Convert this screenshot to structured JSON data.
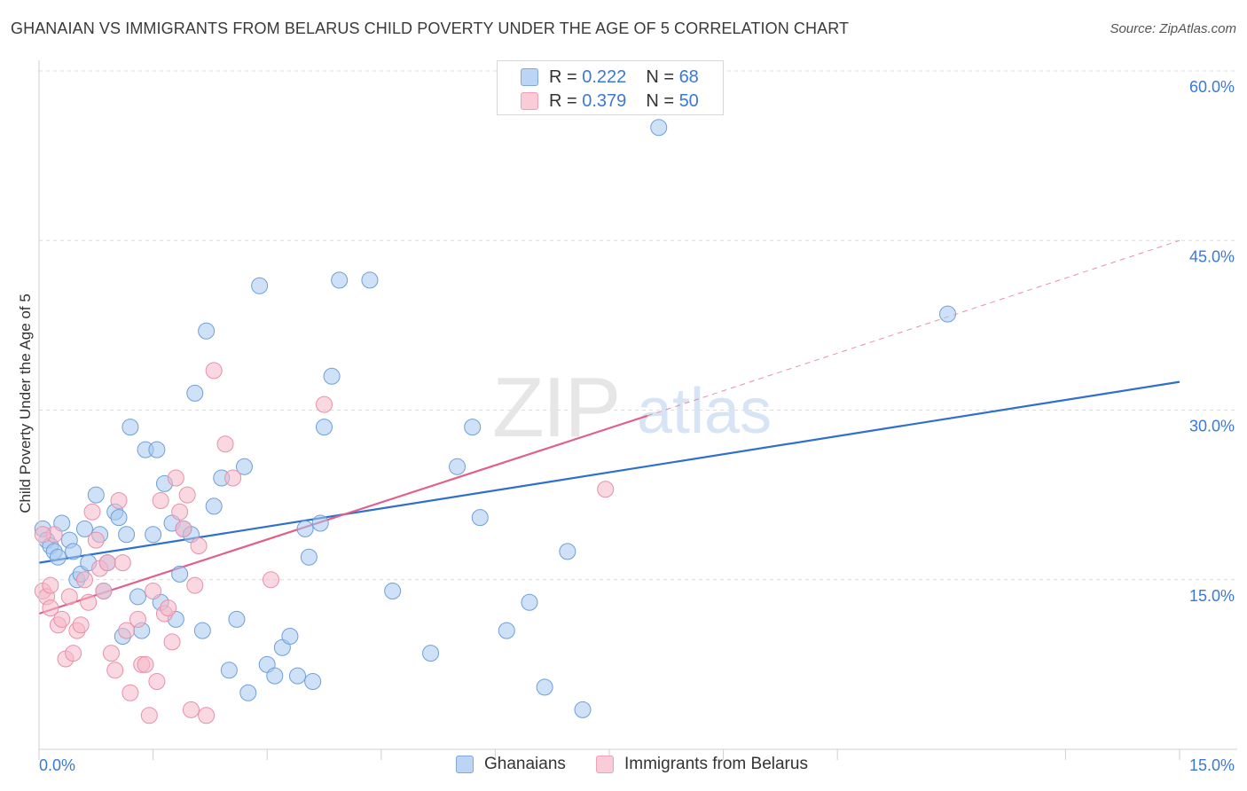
{
  "chart_data": {
    "type": "scatter",
    "title": "GHANAIAN VS IMMIGRANTS FROM BELARUS CHILD POVERTY UNDER THE AGE OF 5 CORRELATION CHART",
    "source": "Source: ZipAtlas.com",
    "ylabel": "Child Poverty Under the Age of 5",
    "xlabel": "",
    "xlim": [
      0,
      15
    ],
    "ylim": [
      0,
      60
    ],
    "x_tick_labels": [
      "0.0%",
      "15.0%"
    ],
    "y_ticks": [
      15,
      30,
      45,
      60
    ],
    "y_tick_labels": [
      "15.0%",
      "30.0%",
      "45.0%",
      "60.0%"
    ],
    "grid": true,
    "watermark": "ZIPatlas",
    "legend": {
      "position": "top-center",
      "entries": [
        {
          "r_label": "R =",
          "r_value": "0.222",
          "n_label": "N =",
          "n_value": "68"
        },
        {
          "r_label": "R =",
          "r_value": "0.379",
          "n_label": "N =",
          "n_value": "50"
        }
      ]
    },
    "series": [
      {
        "name": "Ghanaians",
        "color": "#a8c8f0",
        "stroke": "#6f9fd8",
        "trend_color": "#2f6fce",
        "trend": {
          "x0": 0,
          "y0": 16.5,
          "x1": 15,
          "y1": 32.5
        },
        "points": [
          [
            0.05,
            19.5
          ],
          [
            0.1,
            18.5
          ],
          [
            0.15,
            18.0
          ],
          [
            0.2,
            17.5
          ],
          [
            0.25,
            17.0
          ],
          [
            0.3,
            20.0
          ],
          [
            0.4,
            18.5
          ],
          [
            0.45,
            17.5
          ],
          [
            0.5,
            15.0
          ],
          [
            0.55,
            15.5
          ],
          [
            0.6,
            19.5
          ],
          [
            0.65,
            16.5
          ],
          [
            0.75,
            22.5
          ],
          [
            0.8,
            19.0
          ],
          [
            0.85,
            14.0
          ],
          [
            0.9,
            16.5
          ],
          [
            1.0,
            21.0
          ],
          [
            1.05,
            20.5
          ],
          [
            1.1,
            10.0
          ],
          [
            1.15,
            19.0
          ],
          [
            1.2,
            28.5
          ],
          [
            1.3,
            13.5
          ],
          [
            1.35,
            10.5
          ],
          [
            1.4,
            26.5
          ],
          [
            1.5,
            19.0
          ],
          [
            1.55,
            26.5
          ],
          [
            1.6,
            13.0
          ],
          [
            1.65,
            23.5
          ],
          [
            1.75,
            20.0
          ],
          [
            1.8,
            11.5
          ],
          [
            1.85,
            15.5
          ],
          [
            1.9,
            19.5
          ],
          [
            2.0,
            19.0
          ],
          [
            2.05,
            31.5
          ],
          [
            2.15,
            10.5
          ],
          [
            2.2,
            37.0
          ],
          [
            2.3,
            21.5
          ],
          [
            2.4,
            24.0
          ],
          [
            2.5,
            7.0
          ],
          [
            2.6,
            11.5
          ],
          [
            2.7,
            25.0
          ],
          [
            2.75,
            5.0
          ],
          [
            2.9,
            41.0
          ],
          [
            3.0,
            7.5
          ],
          [
            3.1,
            6.5
          ],
          [
            3.2,
            9.0
          ],
          [
            3.3,
            10.0
          ],
          [
            3.4,
            6.5
          ],
          [
            3.5,
            19.5
          ],
          [
            3.55,
            17.0
          ],
          [
            3.6,
            6.0
          ],
          [
            3.7,
            20.0
          ],
          [
            3.75,
            28.5
          ],
          [
            3.85,
            33.0
          ],
          [
            3.95,
            41.5
          ],
          [
            4.35,
            41.5
          ],
          [
            4.65,
            14.0
          ],
          [
            5.15,
            8.5
          ],
          [
            5.5,
            25.0
          ],
          [
            5.7,
            28.5
          ],
          [
            5.8,
            20.5
          ],
          [
            6.15,
            10.5
          ],
          [
            6.45,
            13.0
          ],
          [
            6.65,
            5.5
          ],
          [
            6.95,
            17.5
          ],
          [
            7.15,
            3.5
          ],
          [
            8.15,
            55.0
          ],
          [
            11.95,
            38.5
          ]
        ]
      },
      {
        "name": "Immigrants from Belarus",
        "color": "#f5b8c8",
        "stroke": "#e890aa",
        "trend_color": "#e0608a",
        "trend": {
          "x0": 0,
          "y0": 12.0,
          "x1": 8.0,
          "y1": 29.5
        },
        "trend_ext": {
          "x0": 8.0,
          "y0": 29.5,
          "x1": 15,
          "y1": 45.0
        },
        "points": [
          [
            0.05,
            14.0
          ],
          [
            0.1,
            13.5
          ],
          [
            0.15,
            12.5
          ],
          [
            0.2,
            19.0
          ],
          [
            0.25,
            11.0
          ],
          [
            0.3,
            11.5
          ],
          [
            0.35,
            8.0
          ],
          [
            0.4,
            13.5
          ],
          [
            0.45,
            8.5
          ],
          [
            0.5,
            10.5
          ],
          [
            0.55,
            11.0
          ],
          [
            0.6,
            15.0
          ],
          [
            0.65,
            13.0
          ],
          [
            0.7,
            21.0
          ],
          [
            0.75,
            18.5
          ],
          [
            0.8,
            16.0
          ],
          [
            0.85,
            14.0
          ],
          [
            0.9,
            16.5
          ],
          [
            0.95,
            8.5
          ],
          [
            1.0,
            7.0
          ],
          [
            1.05,
            22.0
          ],
          [
            1.1,
            16.5
          ],
          [
            1.15,
            10.5
          ],
          [
            1.2,
            5.0
          ],
          [
            1.3,
            11.5
          ],
          [
            1.35,
            7.5
          ],
          [
            1.4,
            7.5
          ],
          [
            1.45,
            3.0
          ],
          [
            1.5,
            14.0
          ],
          [
            1.55,
            6.0
          ],
          [
            1.6,
            22.0
          ],
          [
            1.65,
            12.0
          ],
          [
            1.7,
            12.5
          ],
          [
            1.75,
            9.5
          ],
          [
            1.8,
            24.0
          ],
          [
            1.85,
            21.0
          ],
          [
            1.9,
            19.5
          ],
          [
            1.95,
            22.5
          ],
          [
            2.0,
            3.5
          ],
          [
            2.05,
            14.5
          ],
          [
            2.1,
            18.0
          ],
          [
            2.2,
            3.0
          ],
          [
            2.3,
            33.5
          ],
          [
            2.45,
            27.0
          ],
          [
            2.55,
            24.0
          ],
          [
            3.05,
            15.0
          ],
          [
            3.75,
            30.5
          ],
          [
            7.45,
            23.0
          ],
          [
            0.05,
            19.0
          ],
          [
            0.15,
            14.5
          ]
        ]
      }
    ]
  }
}
